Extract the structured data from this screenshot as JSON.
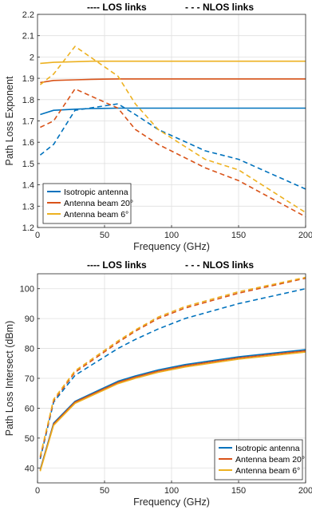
{
  "colors": {
    "isotropic": "#0072BD",
    "beam20": "#D95319",
    "beam6": "#EDB120"
  },
  "chart_data": [
    {
      "type": "line",
      "top_legend": {
        "los": "---- LOS links",
        "nlos": "- - - NLOS links"
      },
      "xlabel": "Frequency (GHz)",
      "ylabel": "Path Loss Exponent",
      "xlim": [
        0,
        200
      ],
      "ylim": [
        1.2,
        2.2
      ],
      "xticks": [
        0,
        50,
        100,
        150,
        200
      ],
      "yticks": [
        1.2,
        1.3,
        1.4,
        1.5,
        1.6,
        1.7,
        1.8,
        1.9,
        2.0,
        2.1,
        2.2
      ],
      "ytick_labels": [
        "1.2",
        "1.3",
        "1.4",
        "1.5",
        "1.6",
        "1.7",
        "1.8",
        "1.9",
        "2",
        "2.1",
        "2.2"
      ],
      "grid": true,
      "legend_position": "bottom-left",
      "legend": [
        "Isotropic antenna",
        "Antenna beam 20°",
        "Antenna beam 6°"
      ],
      "series": [
        {
          "name": "Isotropic antenna",
          "style": "LOS",
          "color": "isotropic",
          "x": [
            2,
            12,
            28,
            40,
            60,
            73,
            100,
            150,
            200
          ],
          "y": [
            1.73,
            1.75,
            1.755,
            1.758,
            1.76,
            1.76,
            1.76,
            1.76,
            1.76
          ]
        },
        {
          "name": "Antenna beam 20°",
          "style": "LOS",
          "color": "beam20",
          "x": [
            2,
            12,
            28,
            40,
            60,
            73,
            100,
            150,
            200
          ],
          "y": [
            1.88,
            1.89,
            1.893,
            1.895,
            1.897,
            1.897,
            1.897,
            1.897,
            1.897
          ]
        },
        {
          "name": "Antenna beam 6°",
          "style": "LOS",
          "color": "beam6",
          "x": [
            2,
            12,
            28,
            40,
            60,
            73,
            100,
            150,
            200
          ],
          "y": [
            1.97,
            1.975,
            1.978,
            1.98,
            1.98,
            1.98,
            1.98,
            1.98,
            1.98
          ]
        },
        {
          "name": "Isotropic antenna",
          "style": "NLOS",
          "color": "isotropic",
          "x": [
            2,
            12,
            28,
            60,
            73,
            90,
            125,
            150,
            200
          ],
          "y": [
            1.54,
            1.59,
            1.75,
            1.78,
            1.73,
            1.66,
            1.56,
            1.52,
            1.38
          ]
        },
        {
          "name": "Antenna beam 20°",
          "style": "NLOS",
          "color": "beam20",
          "x": [
            2,
            12,
            28,
            60,
            73,
            90,
            125,
            150,
            200
          ],
          "y": [
            1.67,
            1.7,
            1.85,
            1.76,
            1.66,
            1.59,
            1.48,
            1.42,
            1.25
          ]
        },
        {
          "name": "Antenna beam 6°",
          "style": "NLOS",
          "color": "beam6",
          "x": [
            2,
            12,
            28,
            60,
            73,
            90,
            125,
            150,
            200
          ],
          "y": [
            1.87,
            1.92,
            2.05,
            1.91,
            1.78,
            1.66,
            1.52,
            1.47,
            1.27
          ]
        }
      ]
    },
    {
      "type": "line",
      "top_legend": {
        "los": "---- LOS links",
        "nlos": "- - - NLOS links"
      },
      "xlabel": "Frequency (GHz)",
      "ylabel": "Path Loss Intersect (dBm)",
      "xlim": [
        0,
        200
      ],
      "ylim": [
        35,
        105
      ],
      "xticks": [
        0,
        50,
        100,
        150,
        200
      ],
      "yticks": [
        40,
        50,
        60,
        70,
        80,
        90,
        100
      ],
      "ytick_labels": [
        "40",
        "50",
        "60",
        "70",
        "80",
        "90",
        "100"
      ],
      "grid": true,
      "legend_position": "bottom-right",
      "legend": [
        "Isotropic antenna",
        "Antenna beam 20°",
        "Antenna beam 6°"
      ],
      "series": [
        {
          "name": "Isotropic antenna",
          "style": "LOS",
          "color": "isotropic",
          "x": [
            2,
            12,
            28,
            60,
            73,
            90,
            110,
            150,
            200
          ],
          "y": [
            39.5,
            55,
            62.3,
            69,
            70.8,
            72.8,
            74.6,
            77.2,
            79.6
          ]
        },
        {
          "name": "Antenna beam 20°",
          "style": "LOS",
          "color": "beam20",
          "x": [
            2,
            12,
            28,
            60,
            73,
            90,
            110,
            150,
            200
          ],
          "y": [
            39.2,
            54.7,
            62.0,
            68.6,
            70.4,
            72.4,
            74.2,
            76.8,
            79.2
          ]
        },
        {
          "name": "Antenna beam 6°",
          "style": "LOS",
          "color": "beam6",
          "x": [
            2,
            12,
            28,
            60,
            73,
            90,
            110,
            150,
            200
          ],
          "y": [
            38.9,
            54.3,
            61.6,
            68.2,
            70.0,
            72.0,
            73.8,
            76.4,
            78.8
          ]
        },
        {
          "name": "Isotropic antenna",
          "style": "NLOS",
          "color": "isotropic",
          "x": [
            2,
            12,
            28,
            60,
            73,
            90,
            110,
            150,
            200
          ],
          "y": [
            43,
            62,
            71,
            80,
            83,
            86.5,
            90,
            95,
            100
          ]
        },
        {
          "name": "Antenna beam 20°",
          "style": "NLOS",
          "color": "beam20",
          "x": [
            2,
            12,
            28,
            60,
            73,
            90,
            110,
            150,
            200
          ],
          "y": [
            43.5,
            62.5,
            72,
            82,
            85.8,
            90,
            93.5,
            98.5,
            103.5
          ]
        },
        {
          "name": "Antenna beam 6°",
          "style": "NLOS",
          "color": "beam6",
          "x": [
            2,
            12,
            28,
            60,
            73,
            90,
            110,
            150,
            200
          ],
          "y": [
            44,
            63,
            72.5,
            82.5,
            86.2,
            90.5,
            94,
            99,
            103.8
          ]
        }
      ]
    }
  ]
}
